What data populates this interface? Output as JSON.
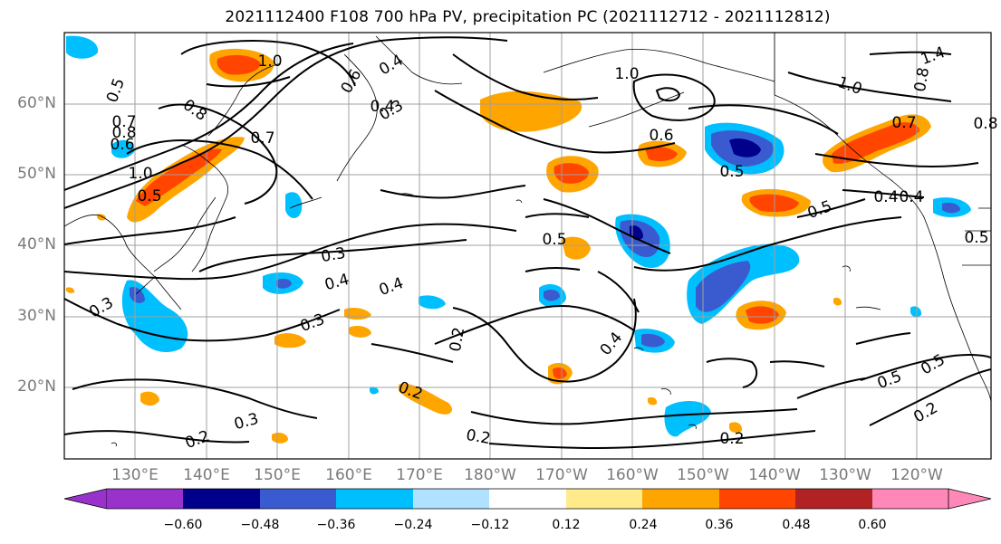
{
  "title": "2021112400 F108 700 hPa PV, precipitation PC (2021112712 - 2021112812)",
  "lat_labels": [
    "60°N",
    "50°N",
    "40°N",
    "30°N",
    "20°N"
  ],
  "lon_labels": [
    "130°E",
    "140°E",
    "150°E",
    "160°E",
    "170°E",
    "180°W",
    "170°W",
    "160°W",
    "150°W",
    "140°W",
    "130°W",
    "120°W"
  ],
  "contour_labels": [
    "1.0",
    "0.8",
    "0.6",
    "0.4",
    "0.3",
    "0.4",
    "1.0",
    "0.5",
    "0.7",
    "0.6",
    "0.8",
    "1.0",
    "0.5",
    "0.7",
    "0.6",
    "0.5",
    "0.5",
    "0.4",
    "0.3",
    "0.4",
    "0.4",
    "0.3",
    "0.5",
    "0.3",
    "0.2",
    "0.4",
    "0.2",
    "0.2",
    "0.2",
    "0.3",
    "0.2",
    "0.5",
    "0.5",
    "0.2",
    "1.4",
    "0.8",
    "0.7",
    "0.8",
    "0.5",
    "0.4",
    "1.0"
  ],
  "colorbar": {
    "ticks": [
      "−0.60",
      "−0.48",
      "−0.36",
      "−0.24",
      "−0.12",
      "0.12",
      "0.24",
      "0.36",
      "0.48",
      "0.60"
    ],
    "colors": [
      "#9932cc",
      "#00008b",
      "#3a5bd0",
      "#00bfff",
      "#b0e2ff",
      "#ffffff",
      "#ffeb8a",
      "#ffa500",
      "#ff4500",
      "#b22222",
      "#ff88b8"
    ]
  },
  "shading_colors": {
    "neg_light": "#00bfff",
    "neg_mid": "#3a5bd0",
    "neg_dark": "#00008b",
    "pos_light": "#ffa500",
    "pos_mid": "#ff4500",
    "pos_pale": "#ffeb8a"
  }
}
